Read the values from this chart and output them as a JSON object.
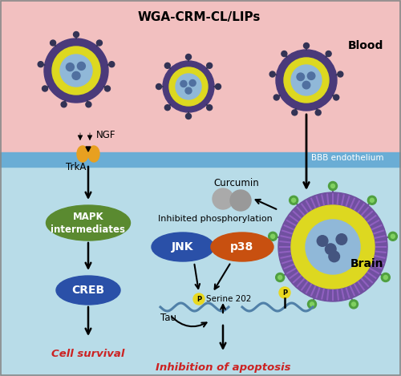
{
  "title": "WGA-CRM-CL/LIPs",
  "blood_label": "Blood",
  "brain_label": "Brain",
  "bbb_label": "BBB endothelium",
  "ngf_label": "NGF",
  "trka_label": "TrkA",
  "mapk_label": "MAPK\nintermediates",
  "creb_label": "CREB",
  "cell_survival_label": "Cell survival",
  "curcumin_label": "Curcumin",
  "inhibited_phosph_label": "Inhibited phosphorylation",
  "jnk_label": "JNK",
  "p38_label": "p38",
  "serine_label": "Serine 202",
  "tau_label": "Tau",
  "inhibit_apopt_label": "Inhibition of apoptosis",
  "P_label": "P",
  "blood_bg": "#f2c0c0",
  "brain_bg": "#b8dce8",
  "bbb_color": "#6aadd5",
  "liposome_outer_ring": "#4a3a7a",
  "liposome_yellow": "#ddd820",
  "liposome_blue_inner": "#90b8d8",
  "mapk_color": "#5a8a30",
  "creb_color": "#2a50a8",
  "jnk_color": "#2a50a8",
  "p38_color": "#c85010",
  "trka_color": "#e8a020",
  "cell_survival_color": "#cc2222",
  "inhibit_apopt_color": "#cc2222",
  "tau_wave_color": "#5080a8",
  "p_bg_color": "#e8d820",
  "spoke_color": "#333355",
  "brain_outer_color": "#7050a0"
}
